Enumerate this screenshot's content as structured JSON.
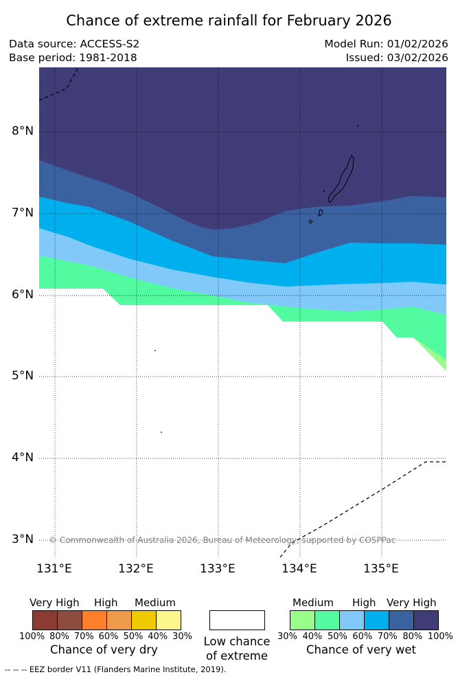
{
  "title": "Chance of extreme rainfall for February 2026",
  "meta": {
    "data_source": "Data source: ACCESS-S2",
    "base_period": "Base period: 1981-2018",
    "model_run": "Model Run: 01/02/2026",
    "issued": "Issued: 03/02/2026"
  },
  "map": {
    "lon_labels": [
      "131°E",
      "132°E",
      "133°E",
      "134°E",
      "135°E"
    ],
    "lat_labels": [
      "8°N",
      "7°N",
      "6°N",
      "5°N",
      "4°N",
      "3°N"
    ],
    "copyright": "© Commonwealth of Australia 2026, Bureau of Meteorology, supported by COSPPac",
    "colors": {
      "very_high_80_100": "#3f3c78",
      "very_high_70_80": "#3a61a0",
      "high_60_70": "#00b0ee",
      "high_50_60": "#80c9f9",
      "medium_40_50": "#52fb9f",
      "medium_30_40": "#99fd8c"
    }
  },
  "legend": {
    "dry": {
      "categories": [
        "Very High",
        "High",
        "Medium"
      ],
      "colors": [
        "#8c3c35",
        "#8c4d3e",
        "#fe7f2a",
        "#ee9a4b",
        "#f0ca00",
        "#fdf68f"
      ],
      "ticks": [
        "100%",
        "80%",
        "70%",
        "60%",
        "50%",
        "40%",
        "30%"
      ],
      "label": "Chance of very dry"
    },
    "low": {
      "label_line1": "Low chance",
      "label_line2": "of extreme"
    },
    "wet": {
      "categories": [
        "Medium",
        "High",
        "Very High"
      ],
      "colors": [
        "#99fd8c",
        "#52fb9f",
        "#80c9f9",
        "#00b0ee",
        "#3a61a0",
        "#3f3c78"
      ],
      "ticks": [
        "30%",
        "40%",
        "50%",
        "60%",
        "70%",
        "80%",
        "100%"
      ],
      "label": "Chance of very wet"
    }
  },
  "footer": "--  --  -- EEZ border V11 (Flanders Marine Institute, 2019)."
}
